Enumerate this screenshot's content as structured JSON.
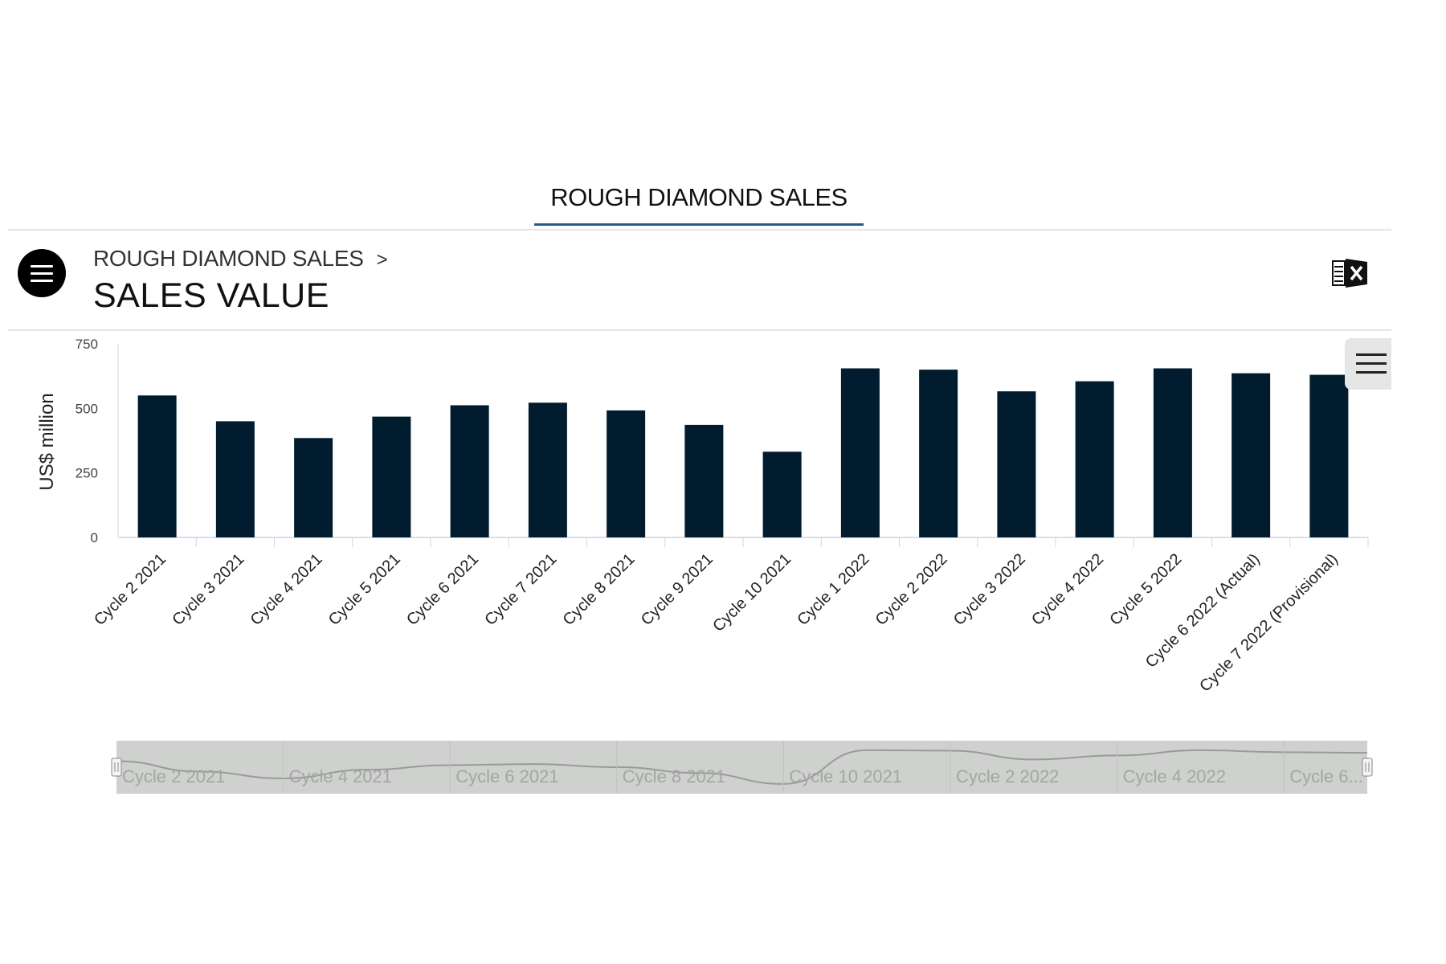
{
  "tabs": [
    {
      "label": "ROUGH DIAMOND SALES",
      "active": true
    }
  ],
  "header": {
    "breadcrumb": "ROUGH DIAMOND SALES",
    "breadcrumb_separator": ">",
    "title": "SALES VALUE"
  },
  "icons": {
    "menu": "hamburger-icon",
    "export": "excel-export-icon",
    "chart_menu": "hamburger-icon"
  },
  "colors": {
    "bar": "#011c2e",
    "tab_underline": "#1f5a91",
    "navigator_bg": "#cfd1cf"
  },
  "chart_data": {
    "type": "bar",
    "ylabel": "US$ million",
    "ylim": [
      0,
      750
    ],
    "yticks": [
      0,
      250,
      500,
      750
    ],
    "categories": [
      "Cycle 2 2021",
      "Cycle 3 2021",
      "Cycle 4 2021",
      "Cycle 5 2021",
      "Cycle 6 2021",
      "Cycle 7 2021",
      "Cycle 8 2021",
      "Cycle 9 2021",
      "Cycle 10 2021",
      "Cycle 1 2022",
      "Cycle 2 2022",
      "Cycle 3 2022",
      "Cycle 4 2022",
      "Cycle 5 2022",
      "Cycle 6 2022 (Actual)",
      "Cycle 7 2022 (Provisional)"
    ],
    "values": [
      550,
      450,
      385,
      468,
      512,
      522,
      492,
      436,
      332,
      655,
      650,
      566,
      605,
      655,
      636,
      630
    ],
    "navigator_labels": [
      "Cycle 2 2021",
      "Cycle 4 2021",
      "Cycle 6 2021",
      "Cycle 8 2021",
      "Cycle 10 2021",
      "Cycle 2 2022",
      "Cycle 4 2022",
      "Cycle 6..."
    ]
  }
}
